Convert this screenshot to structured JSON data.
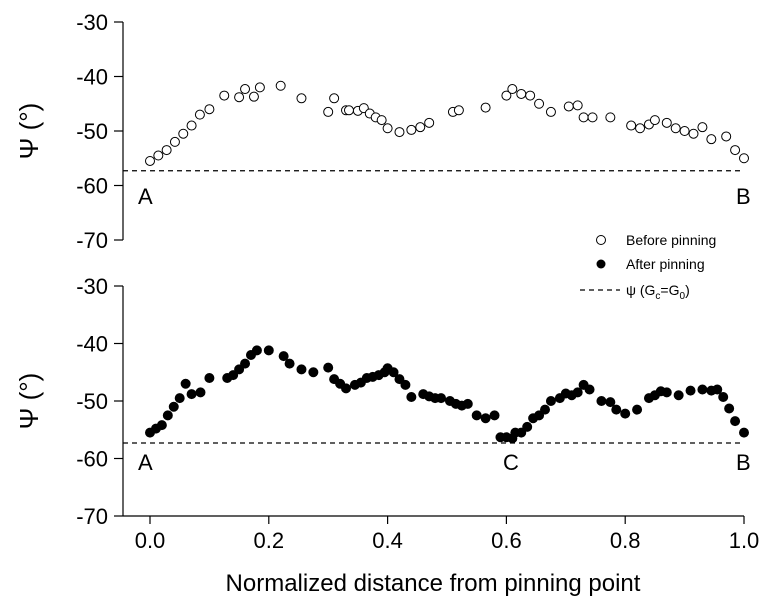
{
  "chart_data": [
    {
      "id": "top",
      "type": "scatter",
      "ylabel": "Ψ (°)",
      "ylim": [
        -70,
        -30
      ],
      "yticks": [
        "-30",
        "-40",
        "-50",
        "-60",
        "-70"
      ],
      "xlim": [
        -0.04,
        1.0
      ],
      "series": [
        {
          "name": "Before pinning",
          "marker": "open-circle",
          "x": [
            0.0,
            0.014,
            0.028,
            0.042,
            0.056,
            0.07,
            0.084,
            0.1,
            0.125,
            0.15,
            0.16,
            0.175,
            0.185,
            0.22,
            0.255,
            0.3,
            0.31,
            0.33,
            0.335,
            0.35,
            0.36,
            0.37,
            0.38,
            0.39,
            0.4,
            0.42,
            0.44,
            0.455,
            0.47,
            0.51,
            0.52,
            0.565,
            0.6,
            0.61,
            0.625,
            0.64,
            0.655,
            0.675,
            0.705,
            0.72,
            0.73,
            0.745,
            0.775,
            0.81,
            0.825,
            0.84,
            0.85,
            0.87,
            0.885,
            0.9,
            0.915,
            0.93,
            0.945,
            0.97,
            0.985,
            1.0
          ],
          "y": [
            -55.5,
            -54.5,
            -53.5,
            -52,
            -50.5,
            -49,
            -47,
            -46,
            -43.5,
            -43.8,
            -42.3,
            -43.7,
            -42,
            -41.7,
            -44,
            -46.5,
            -44,
            -46.2,
            -46.2,
            -46.3,
            -45.8,
            -46.8,
            -47.5,
            -48,
            -49.5,
            -50.2,
            -49.8,
            -49.3,
            -48.5,
            -46.5,
            -46.2,
            -45.7,
            -43.5,
            -42.3,
            -43.2,
            -43.5,
            -45,
            -46.5,
            -45.5,
            -45.3,
            -47.5,
            -47.5,
            -47.5,
            -49,
            -49.5,
            -48.8,
            -48,
            -48.5,
            -49.5,
            -50,
            -50.5,
            -49.3,
            -51.5,
            -51,
            -53.5,
            -55
          ]
        },
        {
          "name": "ψ (Gc=G0)",
          "style": "dashed",
          "y": -57.3
        }
      ],
      "annotations": [
        "A",
        "B"
      ]
    },
    {
      "id": "bottom",
      "type": "scatter",
      "ylabel": "Ψ (°)",
      "xlabel": "Normalized distance from pinning point",
      "ylim": [
        -70,
        -30
      ],
      "yticks": [
        "-30",
        "-40",
        "-50",
        "-60",
        "-70"
      ],
      "xlim": [
        -0.04,
        1.0
      ],
      "xticks": [
        "0.0",
        "0.2",
        "0.4",
        "0.6",
        "0.8",
        "1.0"
      ],
      "xtick_values": [
        0.0,
        0.2,
        0.4,
        0.6,
        0.8,
        1.0
      ],
      "series": [
        {
          "name": "After pinning",
          "marker": "filled-circle",
          "x": [
            0.0,
            0.01,
            0.02,
            0.03,
            0.04,
            0.05,
            0.06,
            0.07,
            0.085,
            0.1,
            0.13,
            0.14,
            0.15,
            0.16,
            0.17,
            0.18,
            0.2,
            0.225,
            0.235,
            0.255,
            0.275,
            0.3,
            0.31,
            0.32,
            0.33,
            0.345,
            0.355,
            0.365,
            0.375,
            0.385,
            0.395,
            0.4,
            0.41,
            0.42,
            0.43,
            0.44,
            0.46,
            0.47,
            0.48,
            0.49,
            0.505,
            0.515,
            0.525,
            0.535,
            0.55,
            0.565,
            0.58,
            0.59,
            0.6,
            0.61,
            0.615,
            0.625,
            0.635,
            0.645,
            0.655,
            0.665,
            0.675,
            0.69,
            0.7,
            0.71,
            0.72,
            0.73,
            0.74,
            0.76,
            0.775,
            0.785,
            0.8,
            0.82,
            0.84,
            0.85,
            0.86,
            0.87,
            0.89,
            0.91,
            0.93,
            0.945,
            0.955,
            0.965,
            0.975,
            0.985,
            1.0
          ],
          "y": [
            -55.5,
            -54.8,
            -54.2,
            -52.5,
            -51,
            -49.5,
            -47,
            -48.8,
            -48.5,
            -46,
            -46,
            -45.5,
            -44.5,
            -43.5,
            -42,
            -41.2,
            -41.2,
            -42.2,
            -43.5,
            -44.5,
            -45,
            -44.2,
            -46.2,
            -47,
            -47.8,
            -47.2,
            -46.8,
            -46,
            -45.8,
            -45.5,
            -45,
            -44.3,
            -45,
            -46.2,
            -47.2,
            -49.3,
            -48.8,
            -49.2,
            -49.5,
            -49.5,
            -50,
            -50.5,
            -50.8,
            -50.5,
            -52.5,
            -53,
            -52.5,
            -56.3,
            -56.3,
            -56.5,
            -55.5,
            -55.5,
            -54.5,
            -53,
            -52.5,
            -51.5,
            -50,
            -49.5,
            -48.7,
            -49,
            -48.5,
            -47.2,
            -48,
            -50,
            -50.2,
            -51.5,
            -52.2,
            -51.5,
            -49.5,
            -49,
            -48.3,
            -48.5,
            -49,
            -48.2,
            -48,
            -48.2,
            -48,
            -49.3,
            -51.3,
            -53.5,
            -55.5
          ]
        },
        {
          "name": "ψ (Gc=G0)",
          "style": "dashed",
          "y": -57.3
        }
      ],
      "annotations": [
        "A",
        "C",
        "B"
      ]
    }
  ],
  "legend": {
    "placement": "right, between panels",
    "items": [
      {
        "marker": "open-circle",
        "label": "Before pinning"
      },
      {
        "marker": "filled-circle",
        "label": "After pinning"
      },
      {
        "marker": "dashed-line",
        "label_prefix": "ψ (G",
        "sub1": "c",
        "label_mid": "=G",
        "sub2": "0",
        "label_suffix": ")"
      }
    ]
  }
}
